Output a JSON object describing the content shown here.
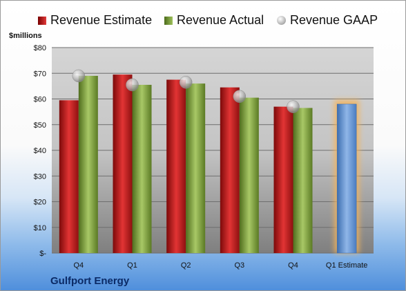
{
  "legend": {
    "estimate": "Revenue Estimate",
    "actual": "Revenue Actual",
    "gaap": "Revenue GAAP"
  },
  "unit_label": "$millions",
  "company": "Gulfport Energy",
  "colors": {
    "estimate": "#c8161a",
    "actual": "#7ea33e",
    "gaap": "#b5b5b5",
    "forecast": "#6f9fd8",
    "forecast_glow": "#f5b45a"
  },
  "chart_data": {
    "type": "bar",
    "categories": [
      "Q4",
      "Q1",
      "Q2",
      "Q3",
      "Q4",
      "Q1 Estimate"
    ],
    "y_tick_labels": [
      "$-",
      "$10",
      "$20",
      "$30",
      "$40",
      "$50",
      "$60",
      "$70",
      "$80"
    ],
    "ylim": [
      0,
      80
    ],
    "legend_position": "top",
    "grid": true,
    "series": [
      {
        "name": "Revenue Estimate",
        "type": "bar",
        "values": [
          59.5,
          69.5,
          67.5,
          64.5,
          57,
          null
        ]
      },
      {
        "name": "Revenue Actual",
        "type": "bar",
        "values": [
          69,
          65.5,
          66,
          60.5,
          56.5,
          null
        ]
      },
      {
        "name": "Revenue GAAP",
        "type": "scatter",
        "values": [
          69,
          65.5,
          66.5,
          61,
          57,
          null
        ]
      },
      {
        "name": "Q1 Estimate",
        "type": "bar",
        "values": [
          null,
          null,
          null,
          null,
          null,
          58
        ]
      }
    ]
  }
}
